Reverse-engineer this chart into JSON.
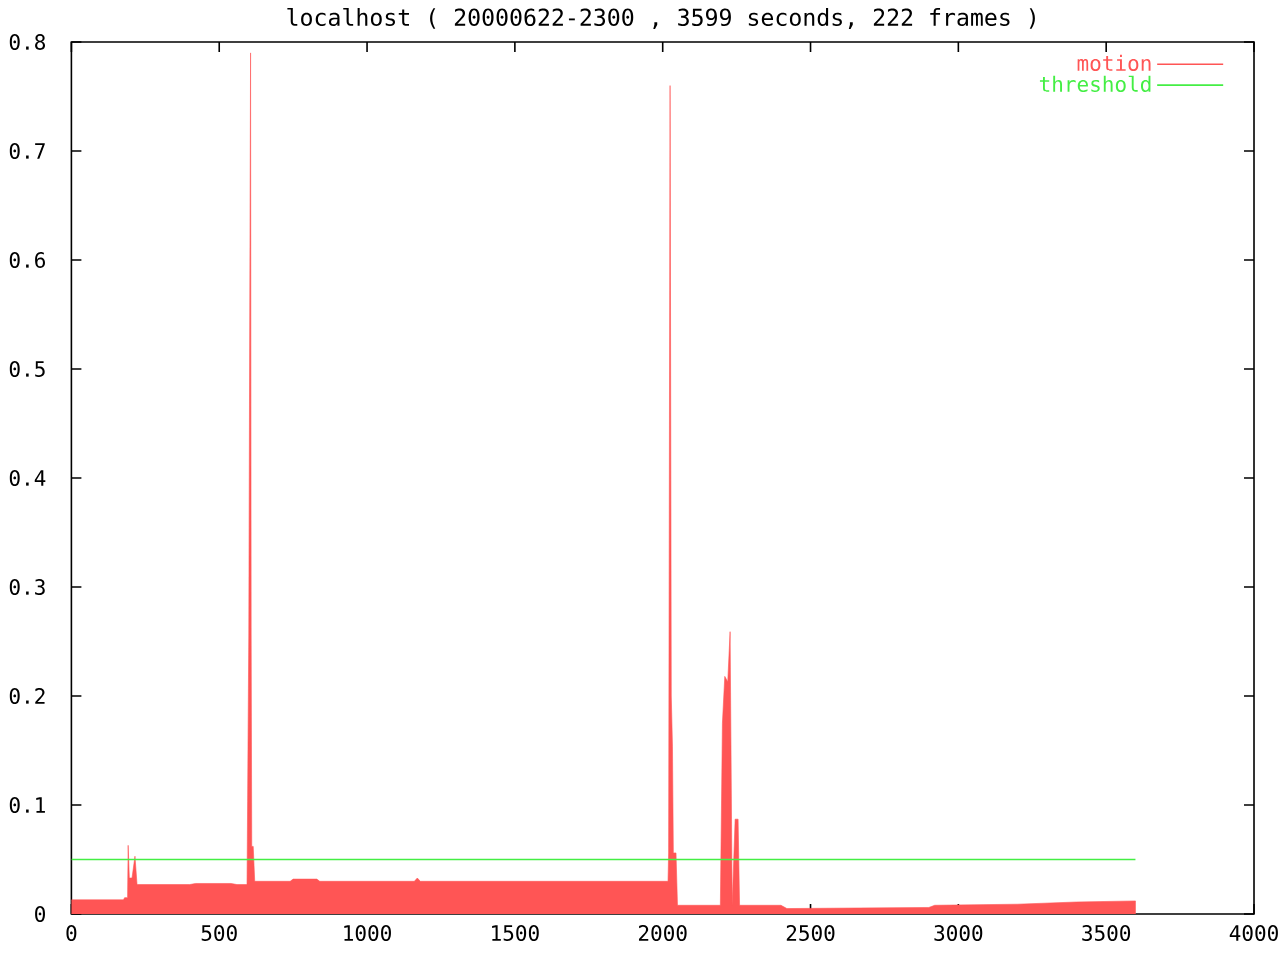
{
  "chart_data": {
    "type": "area",
    "title": "localhost ( 20000622-2300 , 3599 seconds, 222 frames )",
    "xlim": [
      0,
      4000
    ],
    "xticks": [
      0,
      500,
      1000,
      1500,
      2000,
      2500,
      3000,
      3500,
      4000
    ],
    "ylim": [
      0,
      0.8
    ],
    "yticks": [
      0,
      0.1,
      0.2,
      0.3,
      0.4,
      0.5,
      0.6,
      0.7,
      0.8
    ],
    "legend": "top right",
    "line_style": "solid",
    "series": [
      {
        "name": "motion",
        "color": "#ff5555",
        "x": [
          0,
          176,
          180,
          190,
          192,
          196,
          205,
          215,
          222,
          400,
          420,
          540,
          560,
          594,
          596,
          600,
          606,
          608,
          610,
          615,
          620,
          740,
          750,
          830,
          840,
          1160,
          1170,
          1180,
          2018,
          2020,
          2025,
          2029,
          2033,
          2036,
          2045,
          2050,
          2195,
          2202,
          2210,
          2220,
          2228,
          2235,
          2245,
          2255,
          2260,
          2400,
          2420,
          2900,
          2920,
          3200,
          3400,
          3599
        ],
        "values": [
          0.013,
          0.013,
          0.015,
          0.015,
          0.063,
          0.033,
          0.033,
          0.053,
          0.027,
          0.027,
          0.028,
          0.028,
          0.027,
          0.027,
          0.103,
          0.256,
          0.79,
          0.256,
          0.062,
          0.062,
          0.03,
          0.03,
          0.032,
          0.032,
          0.03,
          0.03,
          0.033,
          0.03,
          0.03,
          0.056,
          0.76,
          0.2,
          0.154,
          0.056,
          0.056,
          0.008,
          0.008,
          0.175,
          0.218,
          0.213,
          0.259,
          0.008,
          0.087,
          0.087,
          0.008,
          0.008,
          0.005,
          0.006,
          0.008,
          0.009,
          0.011,
          0.012
        ]
      },
      {
        "name": "threshold",
        "color": "#44ee44",
        "type": "line",
        "x": [
          0,
          3599
        ],
        "values": [
          0.05,
          0.05
        ]
      }
    ]
  }
}
